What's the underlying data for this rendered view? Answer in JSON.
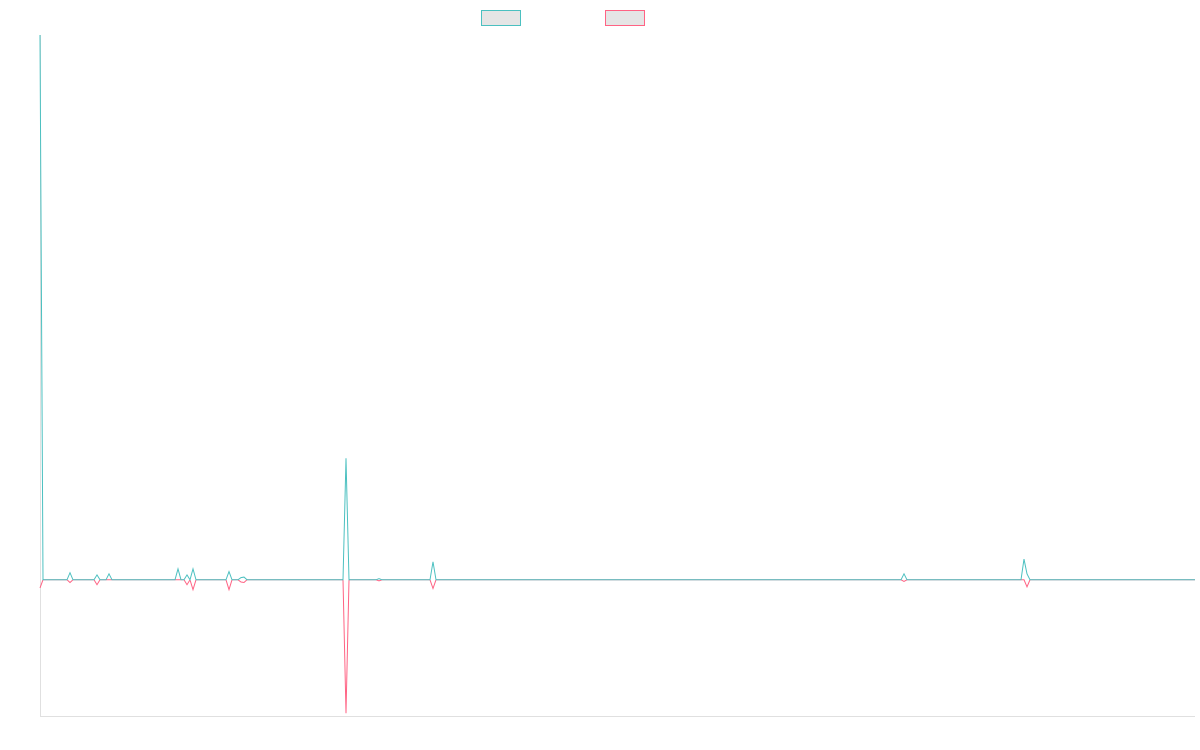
{
  "chart_data": {
    "type": "line",
    "x": [
      0,
      1,
      9,
      10,
      11,
      18,
      19,
      20,
      22,
      23,
      24,
      45,
      46,
      47,
      48,
      49,
      50,
      51,
      52,
      62,
      63,
      64,
      66,
      67,
      68,
      69,
      101,
      102,
      103,
      112,
      113,
      114,
      130,
      131,
      132,
      287,
      288,
      289,
      327,
      328,
      329,
      330,
      385
    ],
    "series": [
      {
        "color": "#4bc0c0",
        "values": [
          100,
          0,
          0,
          1.3,
          0,
          0,
          0.9,
          0,
          0,
          1.1,
          0,
          0,
          2,
          0,
          0,
          0.9,
          0,
          2,
          0,
          0,
          1.5,
          0,
          0,
          0.4,
          0.5,
          0,
          0,
          22.3,
          0,
          0,
          0.2,
          0,
          0,
          3.3,
          0,
          0,
          1.1,
          0,
          0,
          3.8,
          1.1,
          0,
          0
        ]
      },
      {
        "color": "#ff6384",
        "values": [
          -1.5,
          0,
          0,
          -0.5,
          0,
          0,
          -0.9,
          0,
          0,
          0,
          0,
          0,
          0,
          0,
          0,
          -0.9,
          0,
          -1.8,
          0,
          0,
          -1.8,
          0,
          0,
          -0.4,
          -0.5,
          0,
          0,
          -24.5,
          0,
          0,
          -0.2,
          0,
          0,
          -1.6,
          0,
          0,
          -0.3,
          0,
          0,
          0,
          -1.3,
          0,
          0
        ]
      }
    ],
    "xlim": [
      0,
      385
    ],
    "ylim": [
      -25,
      100
    ]
  }
}
